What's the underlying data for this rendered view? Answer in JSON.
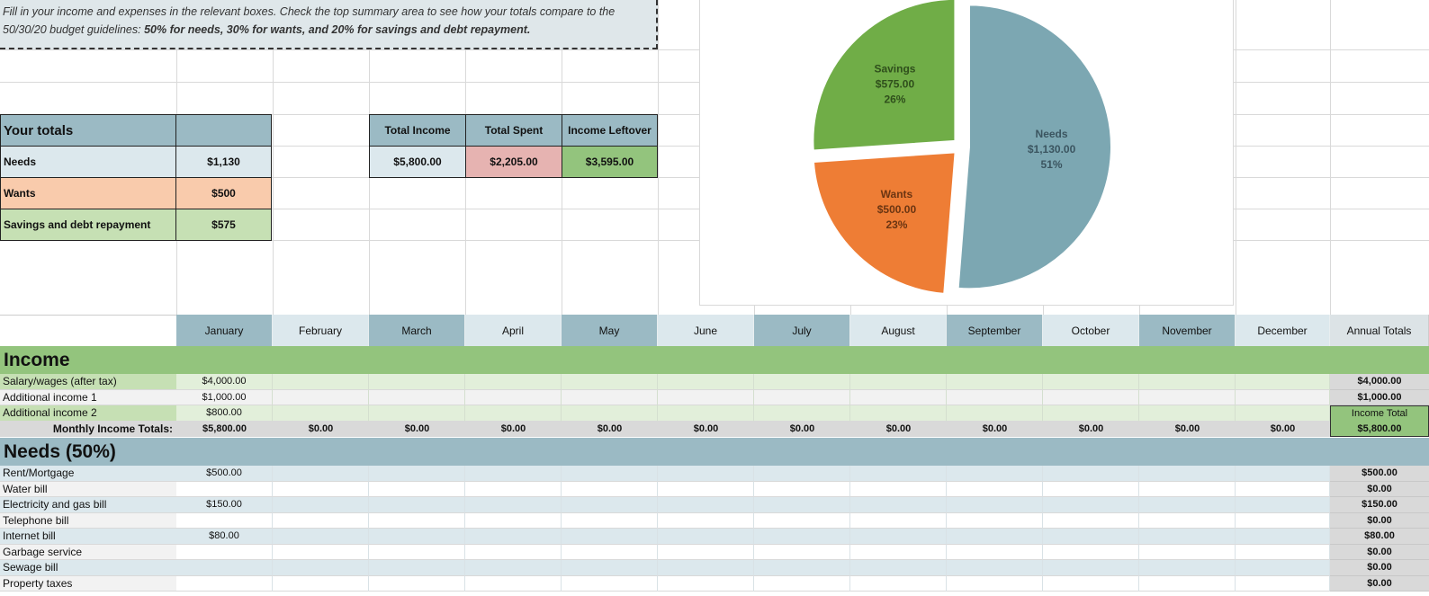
{
  "instructions": {
    "line1": "Fill in your income and expenses in the relevant boxes. Check the top summary area to see how your totals compare to the",
    "line2_plain": "50/30/20 budget guidelines:",
    "line2_bold": "50% for needs, 30% for wants, and 20% for savings and debt repayment."
  },
  "your_totals": {
    "header": "Your totals",
    "rows": [
      {
        "label": "Needs",
        "value": "$1,130"
      },
      {
        "label": "Wants",
        "value": "$500"
      },
      {
        "label": "Savings and debt repayment",
        "value": "$575"
      }
    ]
  },
  "summary": {
    "headers": [
      "Total Income",
      "Total Spent",
      "Income Leftover"
    ],
    "values": [
      "$5,800.00",
      "$2,205.00",
      "$3,595.00"
    ]
  },
  "colors": {
    "header_blue": "#9bbac4",
    "light_blue": "#dce8ed",
    "orange": "#f9cbac",
    "green": "#c6e0b4",
    "income_green": "#93c47d",
    "pink": "#e6b3b1",
    "leftover_green": "#93c47d",
    "needs_band": "#9bbac4",
    "pie_needs": "#7ca7b2",
    "pie_wants": "#ee7d35",
    "pie_savings": "#70ad47"
  },
  "chart_data": {
    "type": "pie",
    "slices": [
      {
        "name": "Needs",
        "amount": "$1,130.00",
        "percent": "51%",
        "value": 1130
      },
      {
        "name": "Wants",
        "amount": "$500.00",
        "percent": "23%",
        "value": 500
      },
      {
        "name": "Savings",
        "amount": "$575.00",
        "percent": "26%",
        "value": 575
      }
    ]
  },
  "months": [
    "January",
    "February",
    "March",
    "April",
    "May",
    "June",
    "July",
    "August",
    "September",
    "October",
    "November",
    "December"
  ],
  "annual_header": "Annual Totals",
  "income": {
    "title": "Income",
    "rows": [
      {
        "label": "Salary/wages (after tax)",
        "january": "$4,000.00",
        "annual": "$4,000.00"
      },
      {
        "label": "Additional income 1",
        "january": "$1,000.00",
        "annual": "$1,000.00"
      },
      {
        "label": "Additional income 2",
        "january": "$800.00",
        "annual_label": "Income Total"
      }
    ],
    "totals_label": "Monthly Income Totals:",
    "monthly_totals": [
      "$5,800.00",
      "$0.00",
      "$0.00",
      "$0.00",
      "$0.00",
      "$0.00",
      "$0.00",
      "$0.00",
      "$0.00",
      "$0.00",
      "$0.00",
      "$0.00"
    ],
    "income_total": "$5,800.00"
  },
  "needs": {
    "title": "Needs (50%)",
    "rows": [
      {
        "label": "Rent/Mortgage",
        "january": "$500.00",
        "annual": "$500.00"
      },
      {
        "label": "Water bill",
        "january": "",
        "annual": "$0.00"
      },
      {
        "label": "Electricity and gas bill",
        "january": "$150.00",
        "annual": "$150.00"
      },
      {
        "label": "Telephone bill",
        "january": "",
        "annual": "$0.00"
      },
      {
        "label": "Internet bill",
        "january": "$80.00",
        "annual": "$80.00"
      },
      {
        "label": "Garbage service",
        "january": "",
        "annual": "$0.00"
      },
      {
        "label": "Sewage bill",
        "january": "",
        "annual": "$0.00"
      },
      {
        "label": "Property taxes",
        "january": "",
        "annual": "$0.00"
      }
    ]
  }
}
